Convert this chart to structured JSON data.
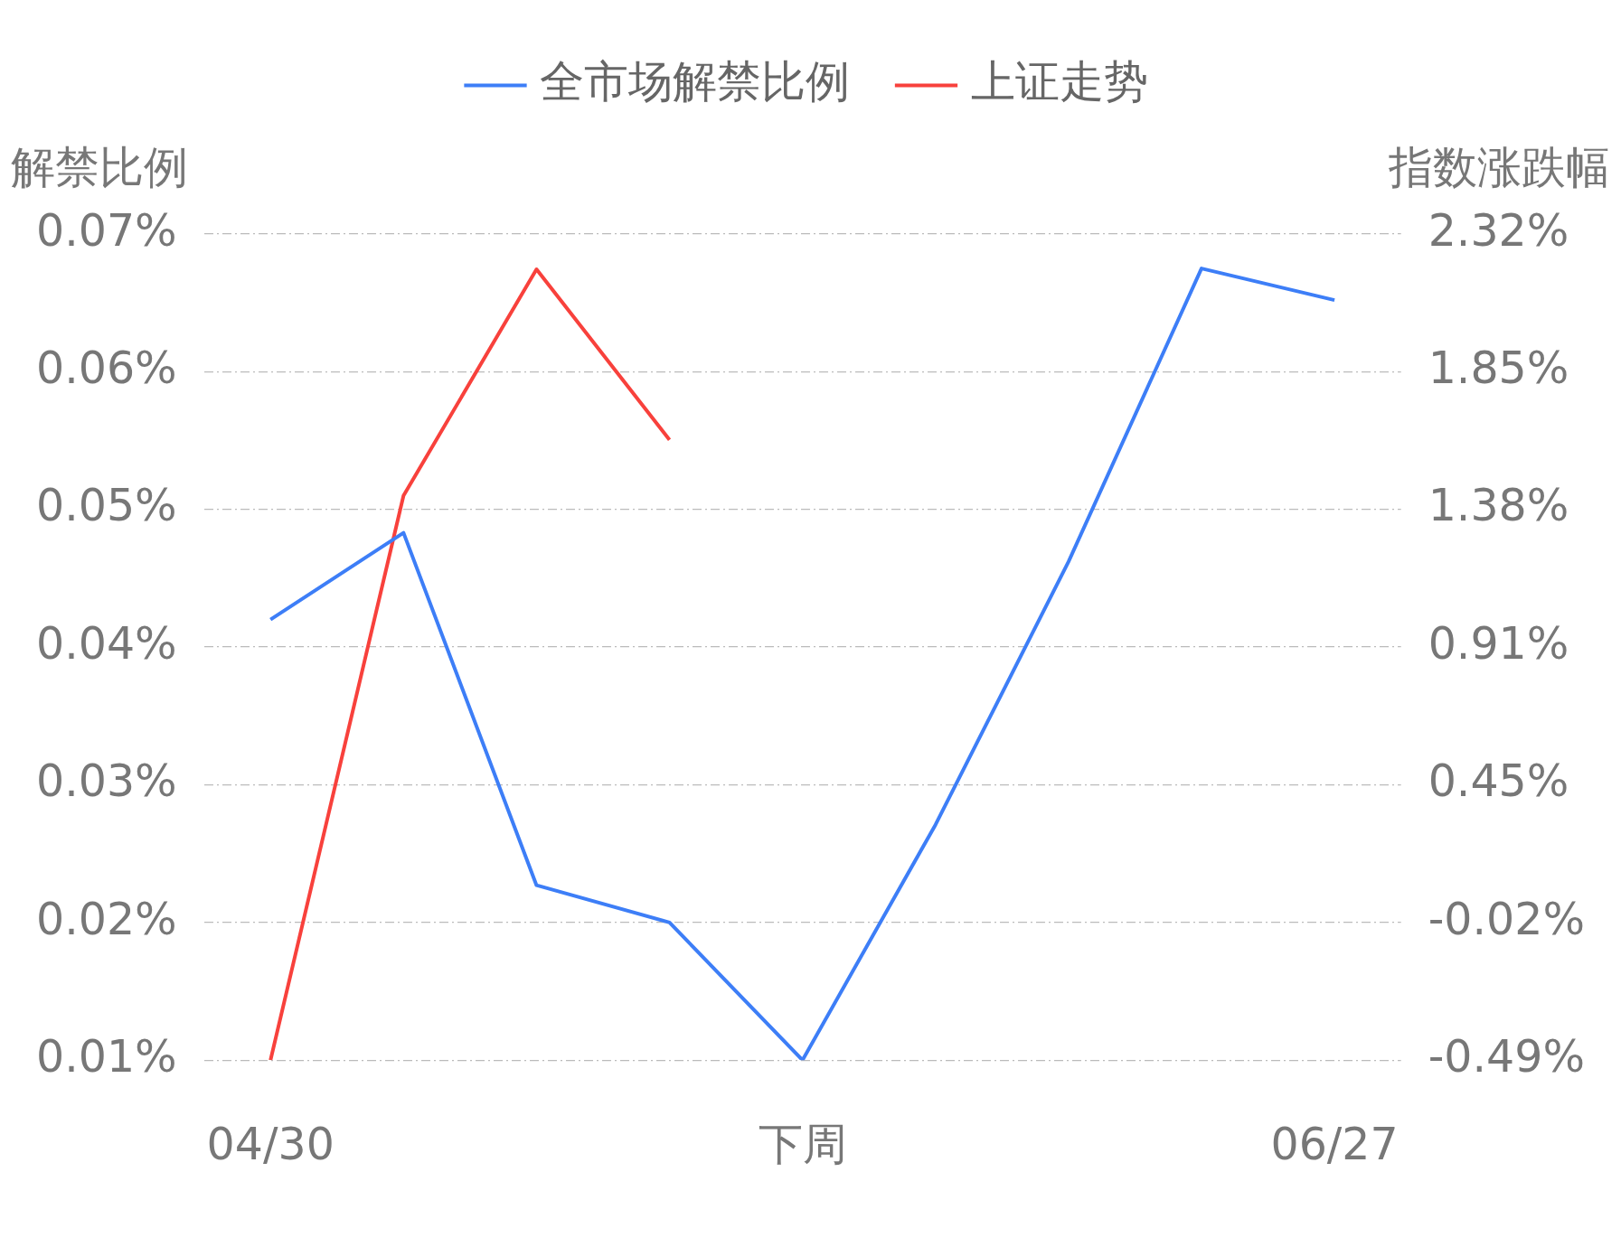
{
  "chart_data": {
    "type": "line",
    "ylabel": "解禁比例",
    "y2label": "指数涨跌幅",
    "categories": [
      "04/30",
      null,
      null,
      null,
      "下周",
      null,
      null,
      null,
      "06/27"
    ],
    "series": [
      {
        "name": "全市场解禁比例",
        "color": "#3d7ef7",
        "values": [
          0.042,
          0.0483,
          0.0227,
          0.02,
          0.01,
          0.0271,
          0.0462,
          0.0675,
          0.0652
        ]
      },
      {
        "name": "上证走势",
        "color": "#f8413c",
        "axis": "y2",
        "values": [
          -0.49,
          1.43,
          2.2,
          1.62,
          null,
          null,
          null,
          null,
          null
        ]
      }
    ],
    "ylim": [
      0.01,
      0.07
    ],
    "yticks": [
      {
        "value": 0.01,
        "label": "0.01%"
      },
      {
        "value": 0.02,
        "label": "0.02%"
      },
      {
        "value": 0.03,
        "label": "0.03%"
      },
      {
        "value": 0.04,
        "label": "0.04%"
      },
      {
        "value": 0.05,
        "label": "0.05%"
      },
      {
        "value": 0.06,
        "label": "0.06%"
      },
      {
        "value": 0.07,
        "label": "0.07%"
      }
    ],
    "y2lim": [
      -0.49,
      2.32
    ],
    "y2ticks": [
      {
        "value": -0.49,
        "label": "-0.49%"
      },
      {
        "value": -0.0217,
        "label": "-0.02%"
      },
      {
        "value": 0.4467,
        "label": "0.45%"
      },
      {
        "value": 0.915,
        "label": "0.91%"
      },
      {
        "value": 1.3833,
        "label": "1.38%"
      },
      {
        "value": 1.8517,
        "label": "1.85%"
      },
      {
        "value": 2.32,
        "label": "2.32%"
      }
    ],
    "grid": "y",
    "legend": "top",
    "marker": "none",
    "line_style": "solid"
  }
}
